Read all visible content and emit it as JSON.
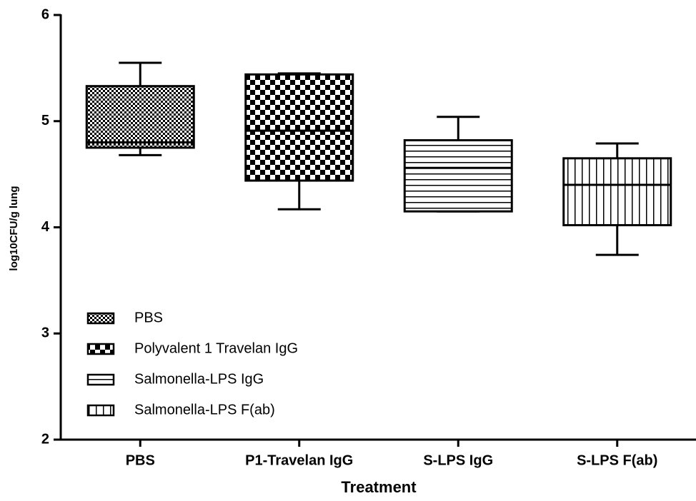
{
  "chart_data": {
    "type": "box",
    "x_label": "Treatment",
    "y_label": "log10CFU/g lung",
    "categories": [
      "PBS",
      "P1-Travelan IgG",
      "S-LPS IgG",
      "S-LPS F(ab)"
    ],
    "series": [
      {
        "name": "PBS",
        "pattern": "fine-checker",
        "whisker_low": 4.68,
        "q1": 4.75,
        "median": 4.8,
        "q3": 5.33,
        "whisker_high": 5.55
      },
      {
        "name": "Polyvalent 1 Travelan IgG",
        "pattern": "checker",
        "whisker_low": 4.17,
        "q1": 4.44,
        "median": 4.91,
        "q3": 5.44,
        "whisker_high": 5.45
      },
      {
        "name": "Salmonella-LPS IgG",
        "pattern": "hlines",
        "whisker_low": 4.15,
        "q1": 4.15,
        "median": 4.56,
        "q3": 4.82,
        "whisker_high": 5.04
      },
      {
        "name": "Salmonella-LPS F(ab)",
        "pattern": "vlines",
        "whisker_low": 3.74,
        "q1": 4.02,
        "median": 4.4,
        "q3": 4.65,
        "whisker_high": 4.79
      }
    ],
    "ylim": [
      2,
      6
    ],
    "yticks": [
      2,
      3,
      4,
      5,
      6
    ],
    "legend": "bottom-left"
  }
}
